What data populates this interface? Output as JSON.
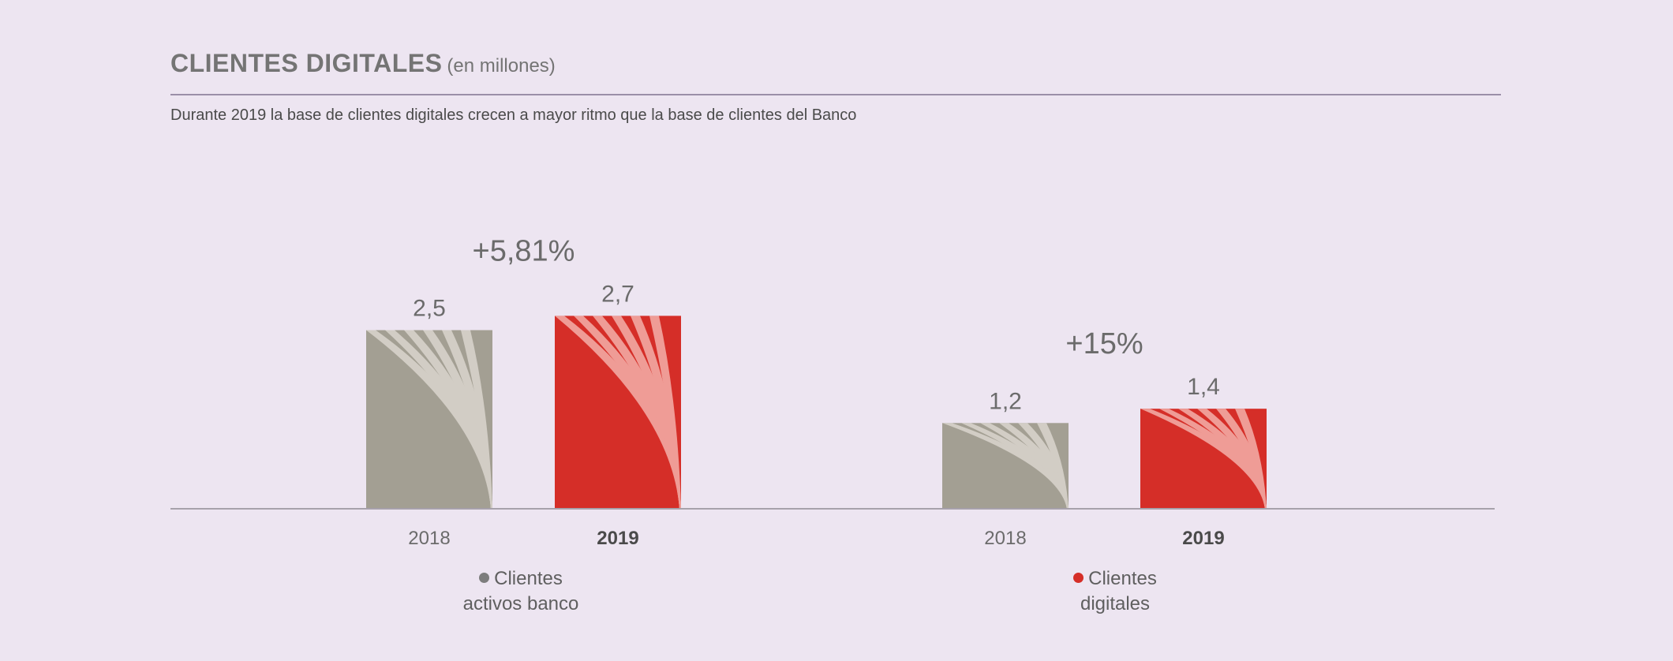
{
  "header": {
    "title": "CLIENTES DIGITALES",
    "unit": "(en millones)",
    "subtitle": "Durante 2019 la base de clientes digitales crecen a mayor ritmo que la base de clientes del Banco"
  },
  "colors": {
    "gray_bar": "#a39f93",
    "gray_stripe": "#d2cdc5",
    "red_bar": "#d52e28",
    "red_stripe": "#ef9c96",
    "legend_gray": "#7d7d7d",
    "legend_red": "#d52e28",
    "axis": "#a7a1ab"
  },
  "chart_data": {
    "type": "bar",
    "ylim": [
      0,
      3.4
    ],
    "groups": [
      {
        "name": "Clientes activos banco",
        "change_label": "+5,81%",
        "color": "gray",
        "bars": [
          {
            "year": "2018",
            "value": 2.5,
            "label": "2,5",
            "color": "gray"
          },
          {
            "year": "2019",
            "value": 2.7,
            "label": "2,7",
            "color": "red"
          }
        ]
      },
      {
        "name": "Clientes digitales",
        "change_label": "+15%",
        "color": "red",
        "bars": [
          {
            "year": "2018",
            "value": 1.2,
            "label": "1,2",
            "color": "gray"
          },
          {
            "year": "2019",
            "value": 1.4,
            "label": "1,4",
            "color": "red"
          }
        ]
      }
    ]
  },
  "legend": {
    "left": {
      "line1": "Clientes",
      "line2": "activos banco"
    },
    "right": {
      "line1": "Clientes",
      "line2": "digitales"
    }
  }
}
